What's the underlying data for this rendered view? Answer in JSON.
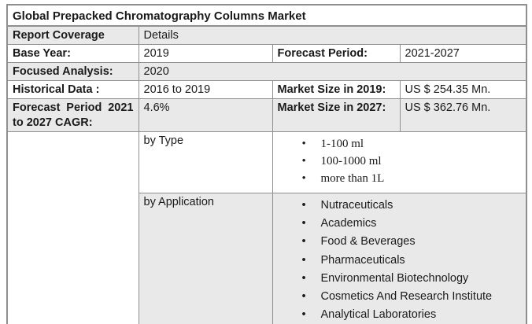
{
  "title": "Global Prepacked Chromatography Columns Market",
  "coverage": {
    "label": "Report Coverage",
    "value": "Details"
  },
  "rows": [
    {
      "c1": "Base Year:",
      "c2": "2019",
      "c3": "Forecast Period:",
      "c4": "2021-2027"
    },
    {
      "c1": "Focused Analysis:",
      "c2": "2020"
    },
    {
      "c1": "Historical Data :",
      "c2": "2016 to 2019",
      "c3": "Market Size in 2019:",
      "c4": "US $ 254.35 Mn."
    },
    {
      "c1": "Forecast Period 2021 to 2027 CAGR:",
      "c2": "4.6%",
      "c3": "Market Size in 2027:",
      "c4": "US $ 362.76 Mn."
    }
  ],
  "segments": [
    {
      "label": "by Type",
      "items": [
        "1-100 ml",
        "100-1000 ml",
        "more than 1L"
      ]
    },
    {
      "label": "by Application",
      "items": [
        "Nutraceuticals",
        "Academics",
        "Food & Beverages",
        "Pharmaceuticals",
        "Environmental Biotechnology",
        "Cosmetics And Research Institute",
        "Analytical Laboratories"
      ]
    }
  ],
  "colors": {
    "band": "#e9e9e9",
    "border": "#8f8f8f",
    "text": "#1a1a1a"
  }
}
